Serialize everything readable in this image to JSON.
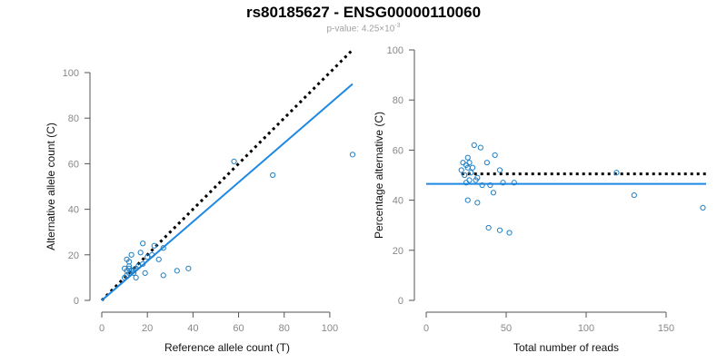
{
  "title": {
    "main": "rs80185627 - ENSG00000110060",
    "p_prefix": "p-value: 4.25×10",
    "p_exp": "-3"
  },
  "chart_data": [
    {
      "type": "scatter",
      "title": "",
      "xlabel": "Reference allele count (T)",
      "ylabel": "Alternative allele count (C)",
      "xlim": [
        0,
        110
      ],
      "ylim": [
        0,
        100
      ],
      "xticks": [
        0,
        20,
        40,
        60,
        80,
        100
      ],
      "yticks": [
        0,
        20,
        40,
        60,
        80,
        100
      ],
      "point_color": "#1f7fc4",
      "points": [
        [
          10,
          10
        ],
        [
          11,
          11
        ],
        [
          12,
          12
        ],
        [
          11,
          13
        ],
        [
          12,
          14
        ],
        [
          13,
          13
        ],
        [
          14,
          12
        ],
        [
          15,
          14
        ],
        [
          12,
          15
        ],
        [
          10,
          14
        ],
        [
          11,
          18
        ],
        [
          12,
          17
        ],
        [
          13,
          20
        ],
        [
          14,
          13
        ],
        [
          15,
          10
        ],
        [
          16,
          15
        ],
        [
          17,
          21
        ],
        [
          18,
          25
        ],
        [
          18,
          16
        ],
        [
          19,
          12
        ],
        [
          20,
          19
        ],
        [
          22,
          20
        ],
        [
          23,
          24
        ],
        [
          25,
          18
        ],
        [
          27,
          23
        ],
        [
          27,
          11
        ],
        [
          33,
          13
        ],
        [
          38,
          14
        ],
        [
          58,
          61
        ],
        [
          75,
          55
        ],
        [
          110,
          64
        ]
      ],
      "lines": [
        {
          "name": "expected",
          "style": "dotted",
          "color": "#000000",
          "x": [
            0,
            110
          ],
          "y": [
            0,
            110
          ]
        },
        {
          "name": "fit",
          "style": "solid",
          "color": "#1e88e5",
          "x": [
            0,
            110
          ],
          "y": [
            0,
            95
          ]
        }
      ]
    },
    {
      "type": "scatter",
      "title": "",
      "xlabel": "Total number of reads",
      "ylabel": "Percentage alternative (C)",
      "xlim": [
        0,
        175
      ],
      "ylim": [
        0,
        100
      ],
      "xticks": [
        0,
        50,
        100,
        150
      ],
      "yticks": [
        0,
        20,
        40,
        60,
        80,
        100
      ],
      "point_color": "#1f7fc4",
      "points": [
        [
          22,
          52
        ],
        [
          23,
          55
        ],
        [
          24,
          50
        ],
        [
          25,
          47
        ],
        [
          25,
          54
        ],
        [
          26,
          53
        ],
        [
          26,
          57
        ],
        [
          27,
          55
        ],
        [
          27,
          48
        ],
        [
          28,
          51
        ],
        [
          29,
          53
        ],
        [
          30,
          62
        ],
        [
          31,
          48
        ],
        [
          32,
          49
        ],
        [
          32,
          39
        ],
        [
          34,
          61
        ],
        [
          35,
          46
        ],
        [
          26,
          40
        ],
        [
          38,
          55
        ],
        [
          39,
          29
        ],
        [
          40,
          46
        ],
        [
          42,
          43
        ],
        [
          43,
          58
        ],
        [
          46,
          28
        ],
        [
          46,
          52
        ],
        [
          48,
          47
        ],
        [
          52,
          27
        ],
        [
          55,
          47
        ],
        [
          119,
          51
        ],
        [
          130,
          42
        ],
        [
          173,
          37
        ]
      ],
      "lines": [
        {
          "name": "expected",
          "style": "dotted",
          "color": "#000000",
          "x": [
            22,
            175
          ],
          "y": [
            50.5,
            50.5
          ]
        },
        {
          "name": "fit",
          "style": "solid",
          "color": "#1e88e5",
          "x": [
            0,
            175
          ],
          "y": [
            46.5,
            46.5
          ]
        }
      ]
    }
  ]
}
